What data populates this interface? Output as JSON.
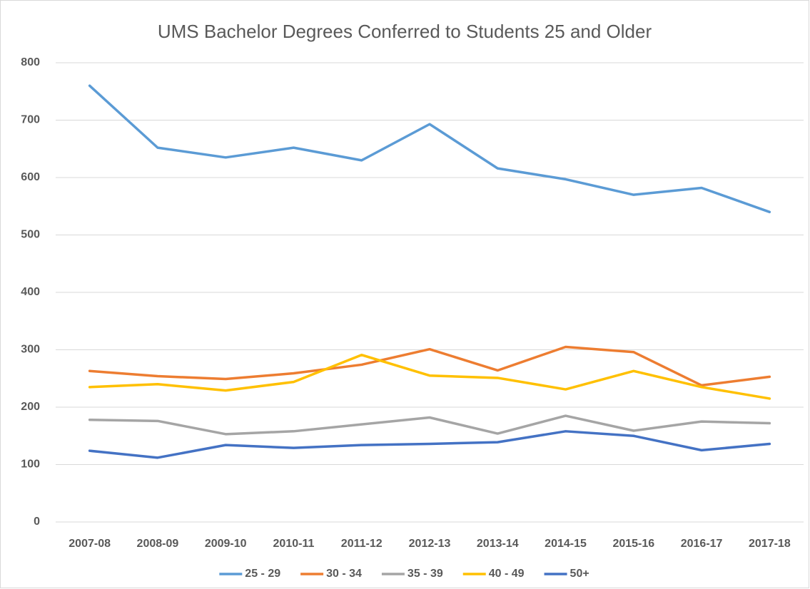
{
  "chart_data": {
    "type": "line",
    "title": "UMS Bachelor Degrees Conferred to Students 25 and Older",
    "categories": [
      "2007-08",
      "2008-09",
      "2009-10",
      "2010-11",
      "2011-12",
      "2012-13",
      "2013-14",
      "2014-15",
      "2015-16",
      "2016-17",
      "2017-18"
    ],
    "series": [
      {
        "name": "25 - 29",
        "color": "#5b9bd5",
        "values": [
          760,
          652,
          635,
          652,
          630,
          693,
          616,
          597,
          570,
          582,
          540
        ]
      },
      {
        "name": "30 - 34",
        "color": "#ed7d31",
        "values": [
          263,
          254,
          249,
          259,
          274,
          301,
          264,
          305,
          296,
          238,
          253
        ]
      },
      {
        "name": "35 - 39",
        "color": "#a5a5a5",
        "values": [
          178,
          176,
          153,
          158,
          170,
          182,
          154,
          185,
          159,
          175,
          172
        ]
      },
      {
        "name": "40 - 49",
        "color": "#ffc000",
        "values": [
          235,
          240,
          229,
          244,
          291,
          255,
          251,
          231,
          263,
          235,
          215
        ]
      },
      {
        "name": "50+",
        "color": "#4472c4",
        "values": [
          124,
          112,
          134,
          129,
          134,
          136,
          139,
          158,
          150,
          125,
          136
        ]
      }
    ],
    "ylim": [
      0,
      800
    ],
    "yticks": [
      0,
      100,
      200,
      300,
      400,
      500,
      600,
      700,
      800
    ],
    "grid": true,
    "legend": "bottom"
  }
}
